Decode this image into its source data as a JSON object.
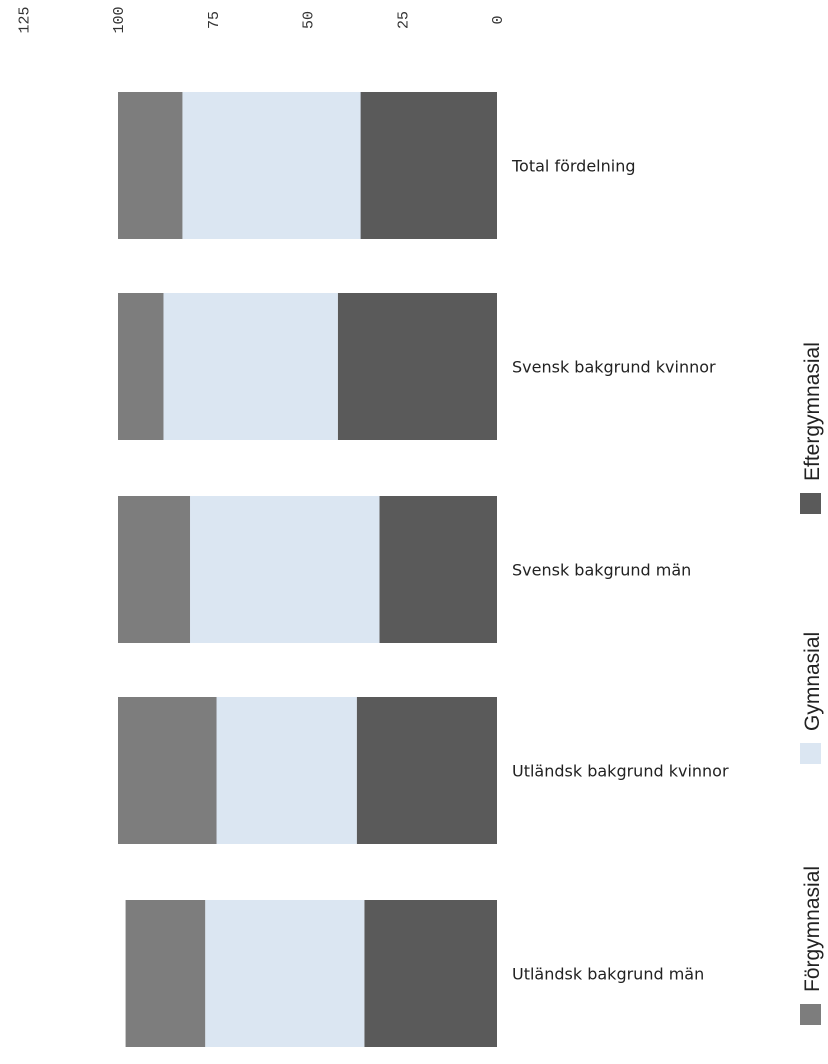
{
  "chart_data": {
    "type": "bar",
    "orientation": "horizontal",
    "stacked": true,
    "axis": {
      "ticks": [
        0,
        25,
        50,
        75,
        100,
        125
      ],
      "tick_labels": [
        "0",
        "25",
        "50",
        "75",
        "100",
        "125"
      ],
      "range": [
        0,
        125
      ],
      "reversed": true
    },
    "title": "",
    "xlabel": "",
    "ylabel": "",
    "grid": false,
    "categories": [
      "Total fördelning",
      "Svensk bakgrund kvinnor",
      "Svensk bakgrund män",
      "Utländsk bakgrund kvinnor",
      "Utländsk bakgrund män"
    ],
    "series": [
      {
        "name": "Eftergymnasial",
        "color": "#5a5a5a",
        "values": [
          36,
          42,
          31,
          37,
          35
        ]
      },
      {
        "name": "Gymnasial",
        "color": "#dbe6f2",
        "values": [
          47,
          46,
          50,
          37,
          42
        ]
      },
      {
        "name": "Förgymnasial",
        "color": "#7d7d7d",
        "values": [
          17,
          12,
          19,
          26,
          21
        ]
      }
    ],
    "legend": {
      "placement": "right",
      "items": [
        "Förgymnasial",
        "Gymnasial",
        "Eftergymnasial"
      ]
    }
  }
}
